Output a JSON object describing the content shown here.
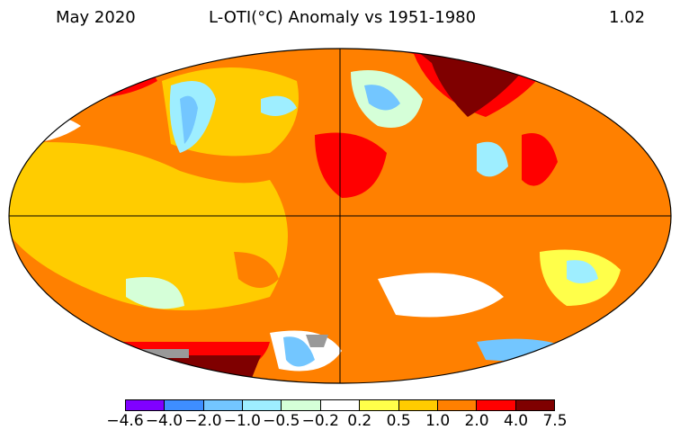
{
  "header": {
    "date": "May 2020",
    "title": "L-OTI(°C) Anomaly vs 1951-1980",
    "global_mean": "1.02"
  },
  "colorbar": {
    "ticks": [
      "−4.6",
      "−4.0",
      "−2.0",
      "−1.0",
      "−0.5",
      "−0.2",
      "0.2",
      "0.5",
      "1.0",
      "2.0",
      "4.0",
      "7.5"
    ],
    "colors": [
      "#8000ff",
      "#3e8eff",
      "#73c6ff",
      "#9eeeff",
      "#d5ffd8",
      "#ffffff",
      "#ffff4a",
      "#ffcc00",
      "#ff8000",
      "#ff0000",
      "#7f0000"
    ]
  },
  "map": {
    "missing_color": "#999999"
  }
}
